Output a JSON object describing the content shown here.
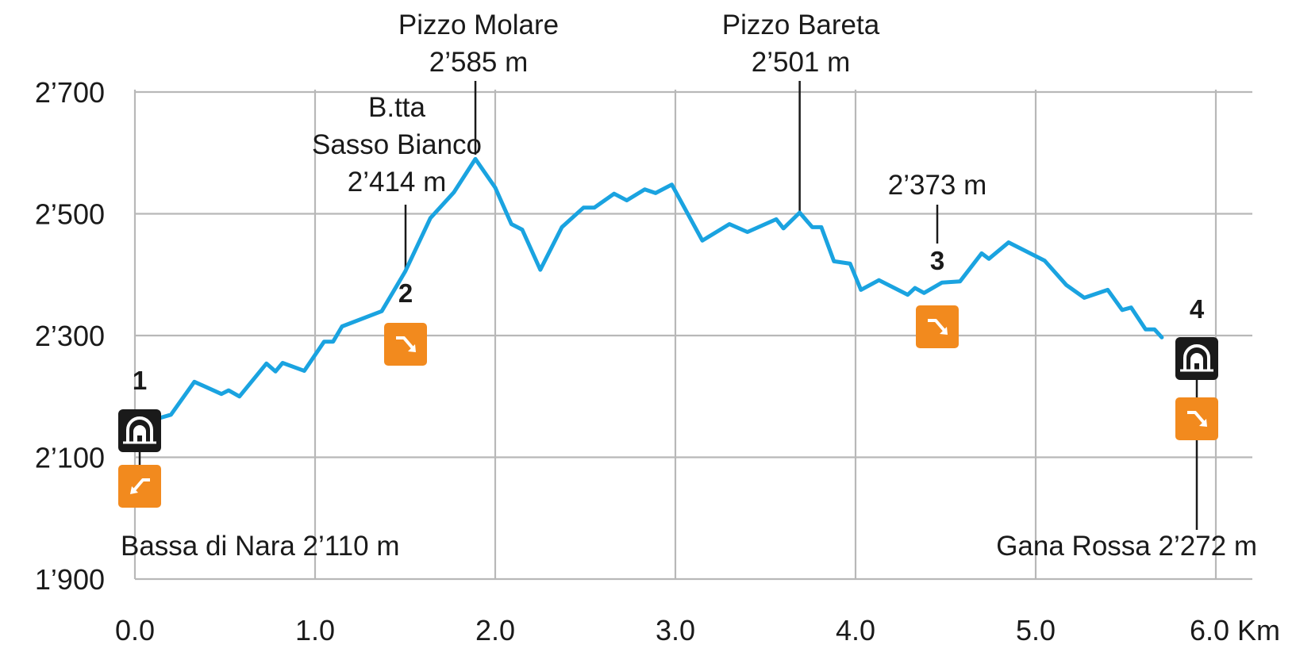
{
  "chart_data": {
    "type": "line",
    "x_unit": "Km",
    "y_unit": "m",
    "xlim": [
      0,
      6.2
    ],
    "ylim": [
      1900,
      2700
    ],
    "x_ticks": [
      0,
      1,
      2,
      3,
      4,
      5,
      6
    ],
    "x_tick_labels": [
      "0.0",
      "1.0",
      "2.0",
      "3.0",
      "4.0",
      "5.0",
      "6.0 Km"
    ],
    "y_ticks": [
      1900,
      2100,
      2300,
      2500,
      2700
    ],
    "y_tick_labels": [
      "1’900",
      "2’100",
      "2’300",
      "2’500",
      "2’700"
    ],
    "grid": true,
    "line_color": "#1aa3e0",
    "series": [
      {
        "x": [
          0.0,
          0.05,
          0.12,
          0.2,
          0.33,
          0.48,
          0.52,
          0.58,
          0.73,
          0.78,
          0.82,
          0.94,
          1.05,
          1.1,
          1.15,
          1.37,
          1.5,
          1.64,
          1.77,
          1.89,
          2.0,
          2.09,
          2.15,
          2.25,
          2.37,
          2.49,
          2.55,
          2.66,
          2.73,
          2.83,
          2.89,
          2.98,
          3.15,
          3.3,
          3.4,
          3.56,
          3.6,
          3.69,
          3.76,
          3.81,
          3.88,
          3.97,
          4.03,
          4.13,
          4.29,
          4.33,
          4.38,
          4.48,
          4.58,
          4.7,
          4.74,
          4.85,
          5.05,
          5.17,
          5.27,
          5.4,
          5.48,
          5.53,
          5.61,
          5.66,
          5.7
        ],
        "y": [
          2150,
          2163,
          2163,
          2170,
          2224,
          2204,
          2210,
          2200,
          2254,
          2241,
          2255,
          2242,
          2290,
          2290,
          2315,
          2340,
          2405,
          2493,
          2535,
          2590,
          2543,
          2483,
          2474,
          2408,
          2478,
          2510,
          2510,
          2533,
          2522,
          2540,
          2534,
          2548,
          2456,
          2483,
          2470,
          2491,
          2476,
          2502,
          2478,
          2478,
          2422,
          2418,
          2375,
          2391,
          2367,
          2378,
          2370,
          2387,
          2389,
          2435,
          2426,
          2453,
          2423,
          2383,
          2362,
          2375,
          2342,
          2346,
          2310,
          2310,
          2297
        ]
      }
    ],
    "annotations": [
      {
        "id": "bassa",
        "x": 0.0,
        "y": 2110,
        "lines": [
          "Bassa di Nara 2’110 m"
        ],
        "number": "1",
        "badges": [
          "hut",
          "ascent"
        ]
      },
      {
        "id": "sasso",
        "x": 1.47,
        "y": 2414,
        "lines": [
          "B.tta",
          "Sasso Bianco",
          "2’414 m"
        ],
        "number": "2",
        "badges": [
          "descent"
        ]
      },
      {
        "id": "molare",
        "x": 1.89,
        "y": 2585,
        "lines": [
          "Pizzo Molare",
          "2’585 m"
        ],
        "number": "",
        "badges": []
      },
      {
        "id": "bareta",
        "x": 3.69,
        "y": 2501,
        "lines": [
          "Pizzo Bareta",
          "2’501 m"
        ],
        "number": "",
        "badges": []
      },
      {
        "id": "pt373",
        "x": 4.48,
        "y": 2373,
        "lines": [
          "2’373 m"
        ],
        "number": "3",
        "badges": [
          "descent"
        ]
      },
      {
        "id": "gana",
        "x": 5.9,
        "y": 2272,
        "lines": [
          "Gana Rossa 2’272 m"
        ],
        "number": "4",
        "badges": [
          "hut",
          "descent"
        ]
      }
    ],
    "badge_colors": {
      "hut": "#1a1a1a",
      "descent": "#f28a1e",
      "ascent": "#f28a1e"
    },
    "icons": {
      "hut": "mountain-hut-icon",
      "descent": "descent-arrow-icon",
      "ascent": "ascent-arrow-icon"
    }
  }
}
